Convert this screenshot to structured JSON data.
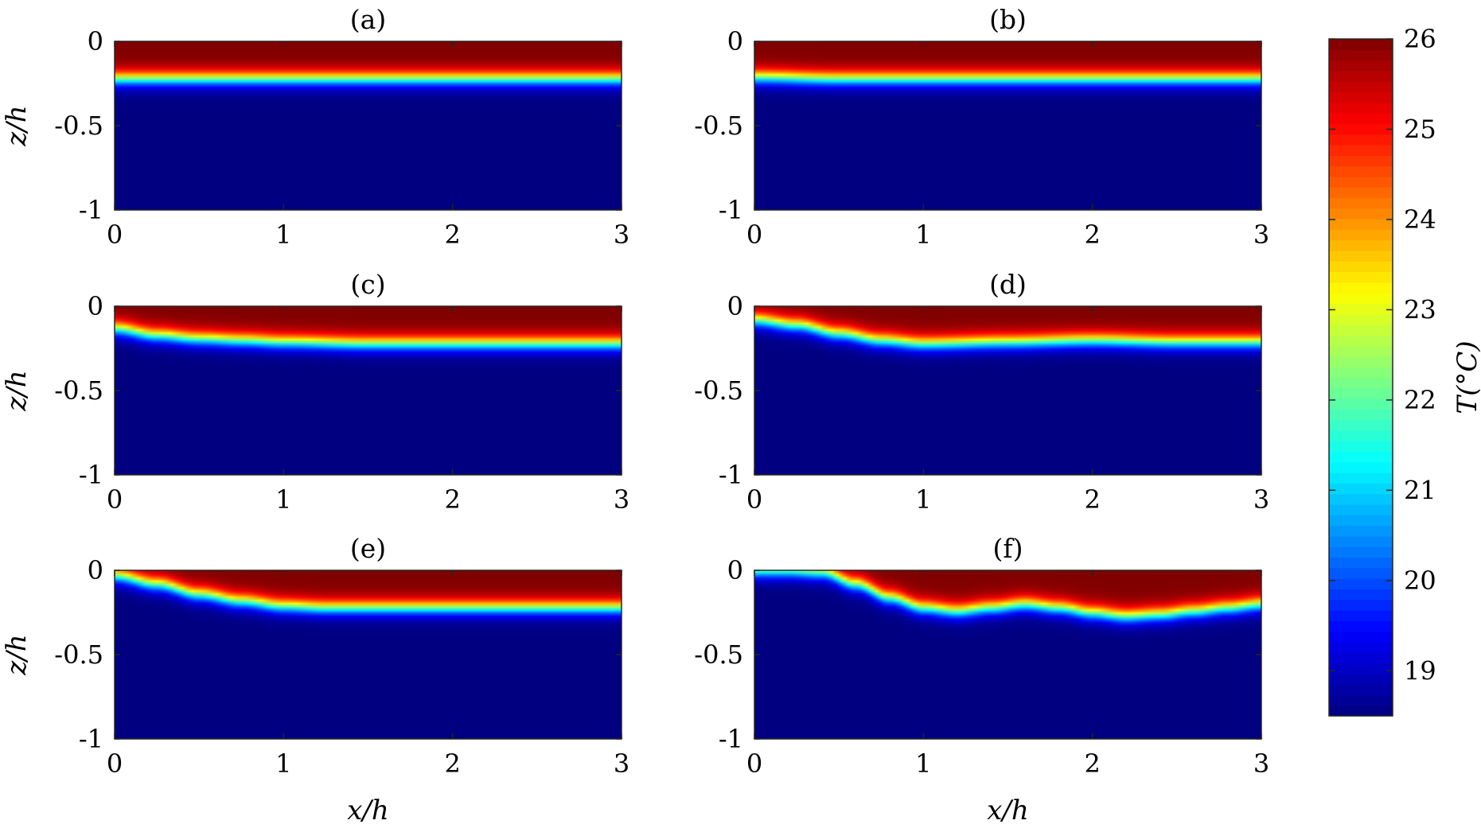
{
  "chart_data": [
    {
      "type": "heatmap",
      "title": "(a)",
      "xlabel": "",
      "ylabel": "z/h",
      "x_range": [
        0,
        3
      ],
      "y_range": [
        -1,
        0
      ],
      "x_ticks": [
        0,
        1,
        2,
        3
      ],
      "y_ticks": [
        0,
        -0.5,
        -1
      ],
      "x_tick_labels": [
        "0",
        "1",
        "2",
        "3"
      ],
      "y_tick_labels": [
        "0",
        "-0.5",
        "-1"
      ],
      "thermocline_depth_profile": {
        "x": [
          0,
          0.5,
          1,
          1.5,
          2,
          2.5,
          3
        ],
        "z": [
          -0.22,
          -0.22,
          -0.22,
          -0.22,
          -0.22,
          -0.22,
          -0.22
        ]
      }
    },
    {
      "type": "heatmap",
      "title": "(b)",
      "xlabel": "",
      "ylabel": "",
      "x_range": [
        0,
        3
      ],
      "y_range": [
        -1,
        0
      ],
      "x_ticks": [
        0,
        1,
        2,
        3
      ],
      "y_ticks": [
        0,
        -0.5,
        -1
      ],
      "x_tick_labels": [
        "0",
        "1",
        "2",
        "3"
      ],
      "y_tick_labels": [
        "0",
        "-0.5",
        "-1"
      ],
      "thermocline_depth_profile": {
        "x": [
          0,
          0.5,
          1,
          1.5,
          2,
          2.5,
          3
        ],
        "z": [
          -0.21,
          -0.22,
          -0.22,
          -0.22,
          -0.22,
          -0.22,
          -0.22
        ]
      }
    },
    {
      "type": "heatmap",
      "title": "(c)",
      "xlabel": "",
      "ylabel": "z/h",
      "x_range": [
        0,
        3
      ],
      "y_range": [
        -1,
        0
      ],
      "x_ticks": [
        0,
        1,
        2,
        3
      ],
      "y_ticks": [
        0,
        -0.5,
        -1
      ],
      "x_tick_labels": [
        "0",
        "1",
        "2",
        "3"
      ],
      "y_tick_labels": [
        "0",
        "-0.5",
        "-1"
      ],
      "thermocline_depth_profile": {
        "x": [
          0,
          0.25,
          0.5,
          0.75,
          1,
          1.5,
          2,
          2.5,
          3
        ],
        "z": [
          -0.13,
          -0.17,
          -0.19,
          -0.2,
          -0.21,
          -0.22,
          -0.22,
          -0.22,
          -0.22
        ]
      }
    },
    {
      "type": "heatmap",
      "title": "(d)",
      "xlabel": "",
      "ylabel": "",
      "x_range": [
        0,
        3
      ],
      "y_range": [
        -1,
        0
      ],
      "x_ticks": [
        0,
        1,
        2,
        3
      ],
      "y_ticks": [
        0,
        -0.5,
        -1
      ],
      "x_tick_labels": [
        "0",
        "1",
        "2",
        "3"
      ],
      "y_tick_labels": [
        "0",
        "-0.5",
        "-1"
      ],
      "thermocline_depth_profile": {
        "x": [
          0,
          0.25,
          0.5,
          0.75,
          1,
          1.5,
          2,
          2.5,
          3
        ],
        "z": [
          -0.08,
          -0.11,
          -0.16,
          -0.2,
          -0.22,
          -0.21,
          -0.2,
          -0.21,
          -0.21
        ]
      }
    },
    {
      "type": "heatmap",
      "title": "(e)",
      "xlabel": "x/h",
      "ylabel": "z/h",
      "x_range": [
        0,
        3
      ],
      "y_range": [
        -1,
        0
      ],
      "x_ticks": [
        0,
        1,
        2,
        3
      ],
      "y_ticks": [
        0,
        -0.5,
        -1
      ],
      "x_tick_labels": [
        "0",
        "1",
        "2",
        "3"
      ],
      "y_tick_labels": [
        "0",
        "-0.5",
        "-1"
      ],
      "thermocline_depth_profile": {
        "x": [
          0,
          0.25,
          0.5,
          0.75,
          1,
          1.25,
          1.5,
          2,
          2.5,
          3
        ],
        "z": [
          -0.03,
          -0.08,
          -0.14,
          -0.18,
          -0.21,
          -0.22,
          -0.22,
          -0.22,
          -0.22,
          -0.22
        ]
      }
    },
    {
      "type": "heatmap",
      "title": "(f)",
      "xlabel": "x/h",
      "ylabel": "",
      "x_range": [
        0,
        3
      ],
      "y_range": [
        -1,
        0
      ],
      "x_ticks": [
        0,
        1,
        2,
        3
      ],
      "y_ticks": [
        0,
        -0.5,
        -1
      ],
      "x_tick_labels": [
        "0",
        "1",
        "2",
        "3"
      ],
      "y_tick_labels": [
        "0",
        "-0.5",
        "-1"
      ],
      "thermocline_depth_profile": {
        "x": [
          0,
          0.2,
          0.4,
          0.6,
          0.8,
          1.0,
          1.2,
          1.4,
          1.6,
          1.8,
          2.0,
          2.2,
          2.4,
          2.6,
          2.8,
          3.0
        ],
        "z": [
          0.0,
          0.0,
          -0.01,
          -0.08,
          -0.16,
          -0.22,
          -0.24,
          -0.22,
          -0.2,
          -0.22,
          -0.25,
          -0.27,
          -0.26,
          -0.24,
          -0.22,
          -0.2
        ]
      }
    }
  ],
  "colorbar": {
    "label": "T(°C)",
    "range": [
      18.5,
      26
    ],
    "ticks": [
      19,
      20,
      21,
      22,
      23,
      24,
      25,
      26
    ],
    "tick_labels": [
      "19",
      "20",
      "21",
      "22",
      "23",
      "24",
      "25",
      "26"
    ],
    "colormap": "jet"
  },
  "temperature_profile": {
    "T_surface": 26,
    "T_deep": 18.5,
    "transition_width": 0.055
  }
}
